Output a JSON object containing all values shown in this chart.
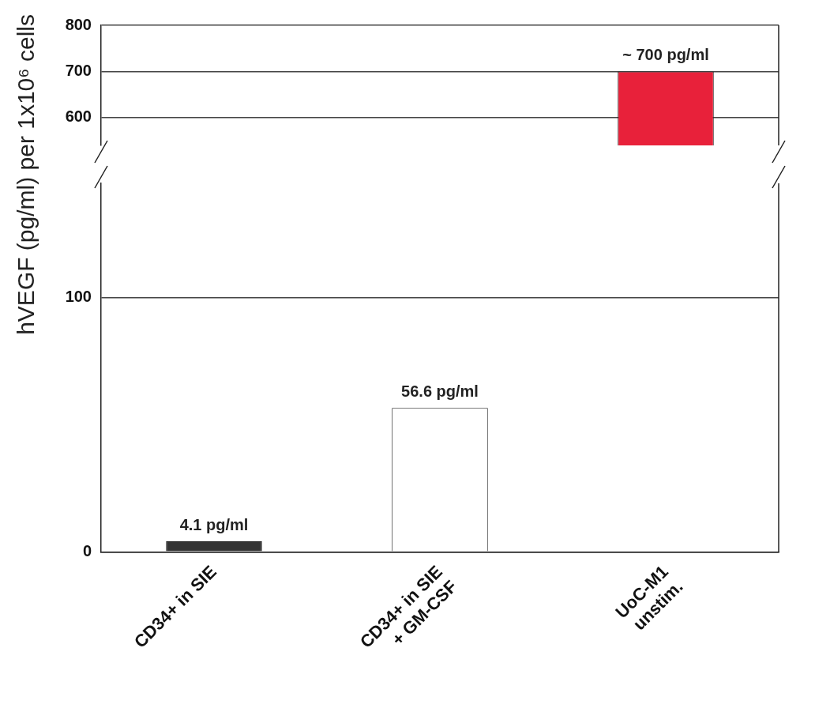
{
  "chart_data": [
    {
      "type": "bar",
      "categories": [
        null,
        null,
        null
      ],
      "values": [
        null,
        null,
        700
      ],
      "colors": [
        "#333333",
        "#ffffff",
        "#e8213a"
      ],
      "value_labels": [
        null,
        null,
        "~ 700 pg/ml"
      ],
      "ylim": [
        540,
        800
      ],
      "yticks": [
        600,
        700,
        800
      ],
      "grid": "y",
      "tick_labels": "y"
    },
    {
      "type": "bar",
      "ylabel": "hVEGF (pg/ml) per 1x10⁶ cells",
      "categories": [
        "CD34+ in SIE",
        "CD34+ in SIE\n+ GM-CSF",
        "UoC-M1\nunstim."
      ],
      "values": [
        4.1,
        56.6,
        null
      ],
      "colors": [
        "#333333",
        "#ffffff",
        "#e8213a"
      ],
      "value_labels": [
        "4.1 pg/ml",
        "56.6 pg/ml",
        null
      ],
      "ylim": [
        0,
        145
      ],
      "yticks": [
        0,
        100
      ],
      "grid": "y"
    }
  ]
}
